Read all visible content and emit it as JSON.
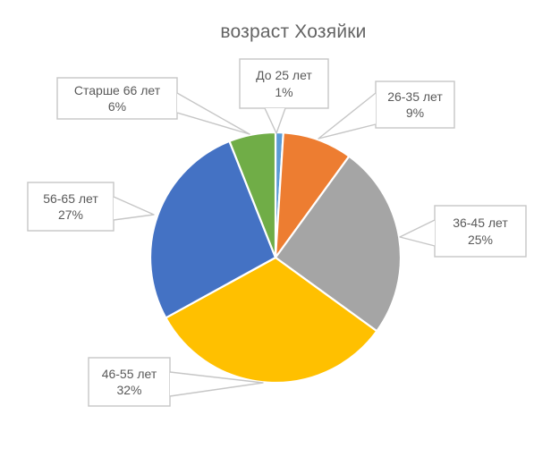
{
  "chart_data": {
    "type": "pie",
    "title": "возраст Хозяйки",
    "categories": [
      "До 25 лет",
      "26-35 лет",
      "36-45 лет",
      "46-55 лет",
      "56-65 лет",
      "Старше 66 лет"
    ],
    "values": [
      1,
      9,
      25,
      32,
      27,
      6
    ],
    "unit": "%",
    "labels": [
      "До 25 лет 1%",
      "26-35 лет 9%",
      "36-45 лет 25%",
      "46-55 лет 32%",
      "56-65 лет 27%",
      "Старше 66 лет 6%"
    ],
    "colors": [
      "#5B9BD5",
      "#ED7D31",
      "#A5A5A5",
      "#FFC000",
      "#4472C4",
      "#70AD47"
    ],
    "start_angle_deg": 0,
    "direction": "clockwise",
    "legend": "none",
    "label_style": "callout-boxes-with-leader-wedges",
    "title_color": "#646464",
    "label_text_color": "#595959",
    "callout_fill": "#FFFFFF",
    "callout_border_color": "#C6C6C6",
    "slice_separator_color": "#FFFFFF"
  }
}
